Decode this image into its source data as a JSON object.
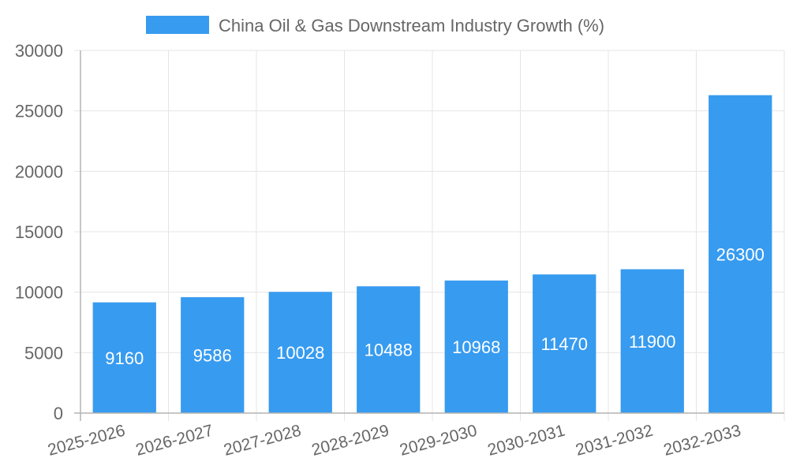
{
  "chart_data": {
    "type": "bar",
    "categories": [
      "2025-2026",
      "2026-2027",
      "2027-2028",
      "2028-2029",
      "2029-2030",
      "2030-2031",
      "2031-2032",
      "2032-2033"
    ],
    "series": [
      {
        "name": "China Oil & Gas Downstream Industry Growth (%)",
        "values": [
          9160,
          9586,
          10028,
          10488,
          10968,
          11470,
          11900,
          26300
        ],
        "color": "#379bf0"
      }
    ],
    "ylim": [
      0,
      30000
    ],
    "yticks": [
      0,
      5000,
      10000,
      15000,
      20000,
      25000,
      30000
    ],
    "grid": true,
    "legend_position": "top",
    "data_labels": true
  }
}
